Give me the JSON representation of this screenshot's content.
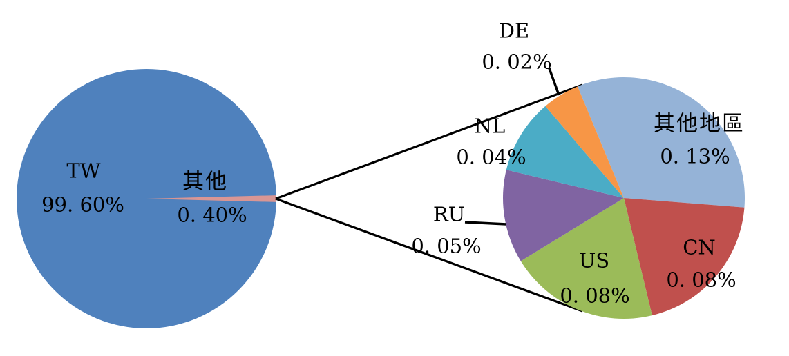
{
  "chart_data": {
    "type": "pie",
    "subtype": "pie-of-pie",
    "title": "",
    "unit": "%",
    "legend": "none",
    "grid": false,
    "primary": {
      "categories": [
        "TW",
        "其他"
      ],
      "values": [
        99.6,
        0.4
      ],
      "colors": [
        "#4F81BD",
        "#D99694"
      ]
    },
    "secondary": {
      "categories": [
        "其他地區",
        "CN",
        "US",
        "RU",
        "NL",
        "DE"
      ],
      "values": [
        0.13,
        0.08,
        0.08,
        0.05,
        0.04,
        0.02
      ],
      "colors": [
        "#95B3D7",
        "#C0504D",
        "#9BBB59",
        "#8064A2",
        "#4BACC6",
        "#F79646"
      ],
      "start_angle_deg": -22.5
    },
    "annotation_colors": {
      "connector_line": "#000000",
      "label_text": "#000000"
    }
  },
  "labels": {
    "tw": {
      "name": "TW",
      "value": "99. 60%"
    },
    "other": {
      "name": "其他",
      "value": "0. 40%"
    },
    "de": {
      "name": "DE",
      "value": "0. 02%"
    },
    "nl": {
      "name": "NL",
      "value": "0. 04%"
    },
    "ru": {
      "name": "RU",
      "value": "0. 05%"
    },
    "us": {
      "name": "US",
      "value": "0. 08%"
    },
    "cn": {
      "name": "CN",
      "value": "0. 08%"
    },
    "other_region": {
      "name": "其他地區",
      "value": "0. 13%"
    }
  }
}
